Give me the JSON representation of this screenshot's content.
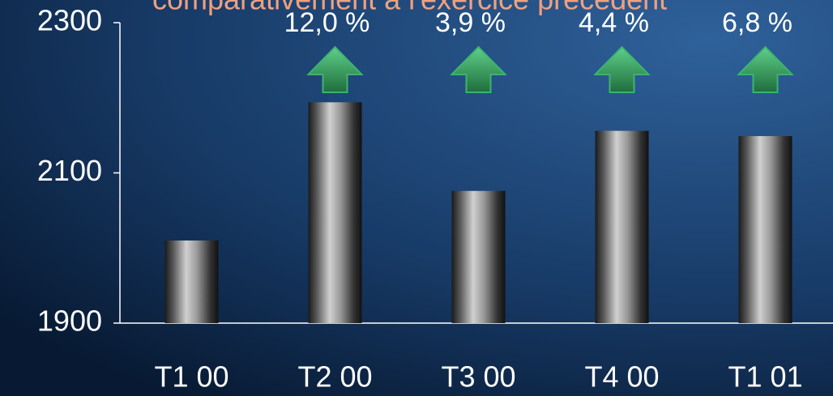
{
  "chart_data": {
    "type": "bar",
    "title": "comparativement à l'exercice précédent",
    "categories": [
      "T1 00",
      "T2 00",
      "T3 00",
      "T4 00",
      "T1 01"
    ],
    "values": [
      2010,
      2194,
      2076,
      2156,
      2149
    ],
    "annotations": [
      null,
      "12,0 %",
      "3,9 %",
      "4,4 %",
      "6,8 %"
    ],
    "color": "#d0d0d0",
    "ylim": [
      1900,
      2300
    ],
    "yticks": [
      1900,
      2100,
      2300
    ]
  }
}
